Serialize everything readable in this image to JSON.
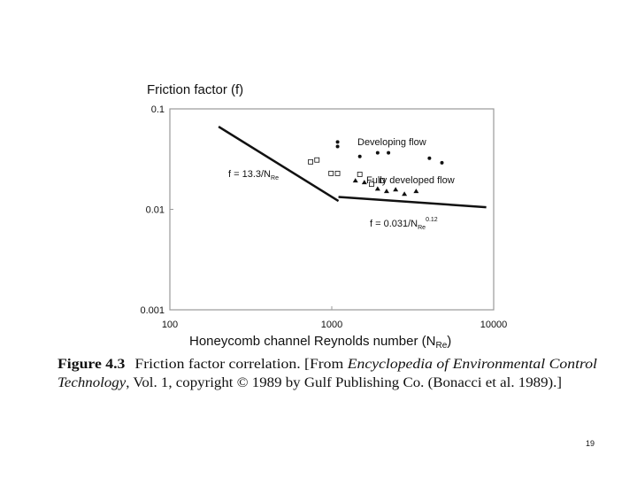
{
  "chart_data": {
    "type": "scatter",
    "title": "Friction factor (f)",
    "x_label": {
      "text": "Honeycomb channel Reynolds number (N",
      "sub": "Re",
      "end": ")"
    },
    "xlim": [
      100,
      10000
    ],
    "xticks": [
      100,
      1000,
      10000
    ],
    "xscale": "log",
    "ylim": [
      0.001,
      0.1
    ],
    "yticks": [
      0.1,
      0.01,
      0.001
    ],
    "yscale": "log",
    "grid": false,
    "series": [
      {
        "marker": "circle",
        "color": "#111",
        "x": [
          1086,
          1086,
          1490,
          1920,
          2240,
          4010,
          4790
        ],
        "values": [
          0.0468,
          0.0422,
          0.0336,
          0.0365,
          0.0365,
          0.0323,
          0.0291
        ]
      },
      {
        "marker": "square",
        "color": "#111",
        "x": [
          740,
          810,
          990,
          1086,
          1490,
          1760,
          2050
        ],
        "values": [
          0.0297,
          0.031,
          0.0228,
          0.0228,
          0.0223,
          0.0178,
          0.0193
        ]
      },
      {
        "marker": "triangle",
        "color": "#111",
        "x": [
          1400,
          1590,
          1920,
          2180,
          2480,
          2810,
          3320
        ],
        "values": [
          0.0193,
          0.0185,
          0.016,
          0.0151,
          0.0157,
          0.0142,
          0.0151
        ]
      }
    ],
    "lines": [
      {
        "color": "#111",
        "x": [
          200,
          1100
        ],
        "values": [
          0.0665,
          0.0121
        ]
      },
      {
        "color": "#111",
        "x": [
          1100,
          9000
        ],
        "values": [
          0.0133,
          0.0105
        ]
      }
    ],
    "annotations": [
      {
        "text": "Developing flow"
      },
      {
        "text": "Fully developed flow"
      },
      {
        "text": "f = 13.3/N",
        "sub": "Re"
      },
      {
        "text": "f = 0.031/N",
        "sub": "Re",
        "sup": "0.12"
      }
    ]
  },
  "caption": {
    "label": "Figure 4.3",
    "text1": "Friction factor correlation. [From ",
    "italic1": "Encyclopedia of Environmental Control",
    "italic2": "Technology",
    "text2": ", Vol. 1, copyright © 1989 by Gulf Publishing Co. (Bonacci et al. 1989).]"
  },
  "page_number": "19"
}
